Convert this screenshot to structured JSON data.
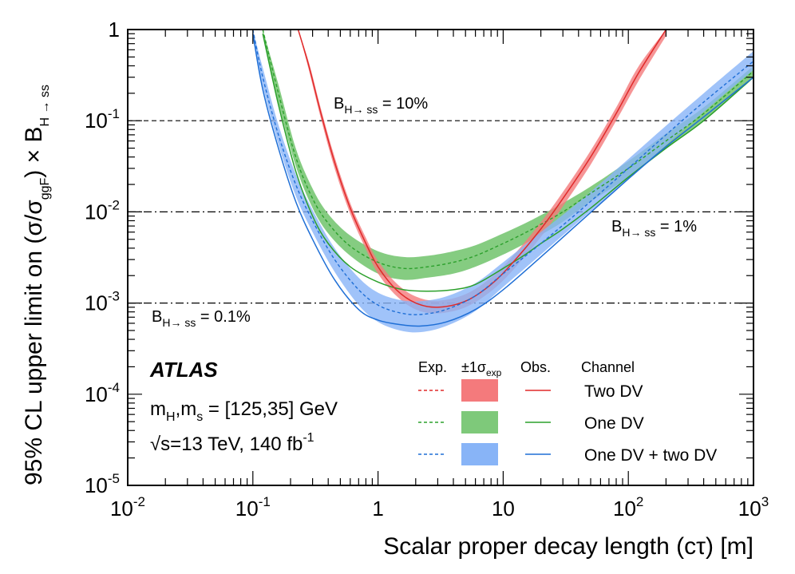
{
  "chart_data": {
    "type": "line",
    "title": "",
    "xlabel": "Scalar proper decay length (cτ) [m]",
    "ylabel_parts": [
      "95% CL upper limit on (σ/σ",
      "ggF",
      ") × B",
      "H → ss"
    ],
    "xscale": "log",
    "yscale": "log",
    "xlim": [
      0.01,
      1000
    ],
    "ylim": [
      1e-05,
      1
    ],
    "x_ticks": [
      {
        "base": "10",
        "exp": "-2"
      },
      {
        "base": "10",
        "exp": "-1"
      },
      {
        "base": "1",
        "exp": ""
      },
      {
        "base": "10",
        "exp": ""
      },
      {
        "base": "10",
        "exp": "2"
      },
      {
        "base": "10",
        "exp": "3"
      }
    ],
    "y_ticks": [
      {
        "base": "10",
        "exp": "-5"
      },
      {
        "base": "10",
        "exp": "-4"
      },
      {
        "base": "10",
        "exp": "-3"
      },
      {
        "base": "10",
        "exp": "-2"
      },
      {
        "base": "10",
        "exp": "-1"
      },
      {
        "base": "1",
        "exp": ""
      }
    ],
    "reference_lines": [
      {
        "value": 0.1,
        "label_main": "B",
        "label_sub": "H→ ss",
        "label_rest": " = 10%",
        "style": "dashed"
      },
      {
        "value": 0.01,
        "label_main": "B",
        "label_sub": "H→ ss",
        "label_rest": " = 1%",
        "style": "dashdot"
      },
      {
        "value": 0.001,
        "label_main": "B",
        "label_sub": "H→ ss",
        "label_rest": " = 0.1%",
        "style": "dashdot"
      }
    ],
    "series": [
      {
        "name": "One DV",
        "color": "#2ca02c",
        "band_color": "#7ec97a",
        "x": [
          0.12,
          0.16,
          0.22,
          0.3,
          0.4,
          0.6,
          1.0,
          1.6,
          2.5,
          4,
          6,
          10,
          15,
          20,
          30,
          50,
          100,
          200,
          400,
          1000
        ],
        "expected": [
          1.0,
          0.2,
          0.04,
          0.014,
          0.0075,
          0.0042,
          0.0028,
          0.0024,
          0.0025,
          0.0028,
          0.0033,
          0.0045,
          0.0059,
          0.0073,
          0.01,
          0.016,
          0.03,
          0.06,
          0.12,
          0.35
        ],
        "band_low": [
          0.9,
          0.16,
          0.032,
          0.011,
          0.0058,
          0.0033,
          0.0021,
          0.0018,
          0.0019,
          0.0021,
          0.0025,
          0.0034,
          0.0045,
          0.0056,
          0.0078,
          0.013,
          0.024,
          0.049,
          0.1,
          0.3
        ],
        "band_high": [
          1.0,
          0.25,
          0.05,
          0.018,
          0.0095,
          0.0055,
          0.0037,
          0.0032,
          0.0033,
          0.0037,
          0.0043,
          0.0058,
          0.0075,
          0.0092,
          0.0125,
          0.019,
          0.036,
          0.072,
          0.14,
          0.4
        ],
        "observed": [
          0.9,
          0.15,
          0.028,
          0.009,
          0.0045,
          0.0025,
          0.0017,
          0.0014,
          0.00135,
          0.0014,
          0.0016,
          0.0024,
          0.0034,
          0.0045,
          0.0065,
          0.011,
          0.024,
          0.05,
          0.1,
          0.3
        ]
      },
      {
        "name": "Two DV",
        "color": "#e02a2a",
        "band_color": "#f47a7c",
        "x": [
          0.23,
          0.28,
          0.35,
          0.45,
          0.6,
          0.8,
          1.0,
          1.4,
          2.0,
          3.0,
          5,
          8,
          12,
          20,
          30,
          50,
          80,
          120,
          200
        ],
        "expected": [
          1.0,
          0.4,
          0.12,
          0.035,
          0.011,
          0.0045,
          0.0025,
          0.0014,
          0.001,
          0.0009,
          0.00105,
          0.0016,
          0.0028,
          0.0065,
          0.014,
          0.04,
          0.12,
          0.33,
          1.0
        ],
        "band_low": [
          1.0,
          0.36,
          0.105,
          0.03,
          0.0095,
          0.0039,
          0.0021,
          0.0012,
          0.00085,
          0.00077,
          0.0009,
          0.00135,
          0.0023,
          0.0053,
          0.0115,
          0.033,
          0.1,
          0.27,
          0.85
        ],
        "band_high": [
          1.0,
          0.44,
          0.135,
          0.04,
          0.0125,
          0.0052,
          0.0029,
          0.00165,
          0.00118,
          0.00106,
          0.00125,
          0.0019,
          0.0033,
          0.0077,
          0.0165,
          0.047,
          0.14,
          0.39,
          1.0
        ],
        "observed": [
          1.0,
          0.4,
          0.12,
          0.035,
          0.011,
          0.0045,
          0.0025,
          0.0014,
          0.001,
          0.0009,
          0.00105,
          0.0016,
          0.0028,
          0.0065,
          0.014,
          0.04,
          0.12,
          0.33,
          1.0
        ]
      },
      {
        "name": "One DV + two DV",
        "color": "#1f6fd6",
        "band_color": "#88b4f7",
        "x": [
          0.1,
          0.12,
          0.16,
          0.22,
          0.3,
          0.45,
          0.7,
          1.0,
          1.5,
          2.2,
          3.5,
          6,
          10,
          20,
          40,
          100,
          200,
          400,
          1000
        ],
        "expected": [
          1.0,
          0.3,
          0.07,
          0.02,
          0.008,
          0.003,
          0.0014,
          0.00095,
          0.00078,
          0.00075,
          0.00085,
          0.0012,
          0.0021,
          0.0045,
          0.01,
          0.03,
          0.07,
          0.16,
          0.45
        ],
        "band_low": [
          0.85,
          0.24,
          0.055,
          0.015,
          0.006,
          0.0022,
          0.00095,
          0.00062,
          0.0005,
          0.00048,
          0.00056,
          0.00082,
          0.0015,
          0.0034,
          0.0078,
          0.023,
          0.054,
          0.125,
          0.36
        ],
        "band_high": [
          1.0,
          0.38,
          0.09,
          0.026,
          0.0105,
          0.004,
          0.0019,
          0.0013,
          0.00108,
          0.00105,
          0.00118,
          0.00165,
          0.0028,
          0.006,
          0.0128,
          0.038,
          0.088,
          0.2,
          0.58
        ],
        "observed": [
          0.9,
          0.22,
          0.05,
          0.013,
          0.005,
          0.0018,
          0.00085,
          0.00065,
          0.00058,
          0.00056,
          0.00062,
          0.00085,
          0.0014,
          0.0032,
          0.0075,
          0.023,
          0.052,
          0.11,
          0.3
        ]
      }
    ],
    "legend": {
      "headers": {
        "exp": "Exp.",
        "band_pre": "±1σ",
        "band_sub": "exp",
        "obs": "Obs.",
        "channel": "Channel"
      },
      "order": [
        "Two DV",
        "One DV",
        "One DV + two DV"
      ],
      "placement": "bottom-right"
    },
    "annotations": {
      "experiment": "ATLAS",
      "line1_parts": [
        "m",
        "H",
        ",m",
        "s",
        " = [125,35] GeV"
      ],
      "line2_parts": [
        "√s=13 TeV, 140 fb",
        "-1"
      ]
    }
  }
}
